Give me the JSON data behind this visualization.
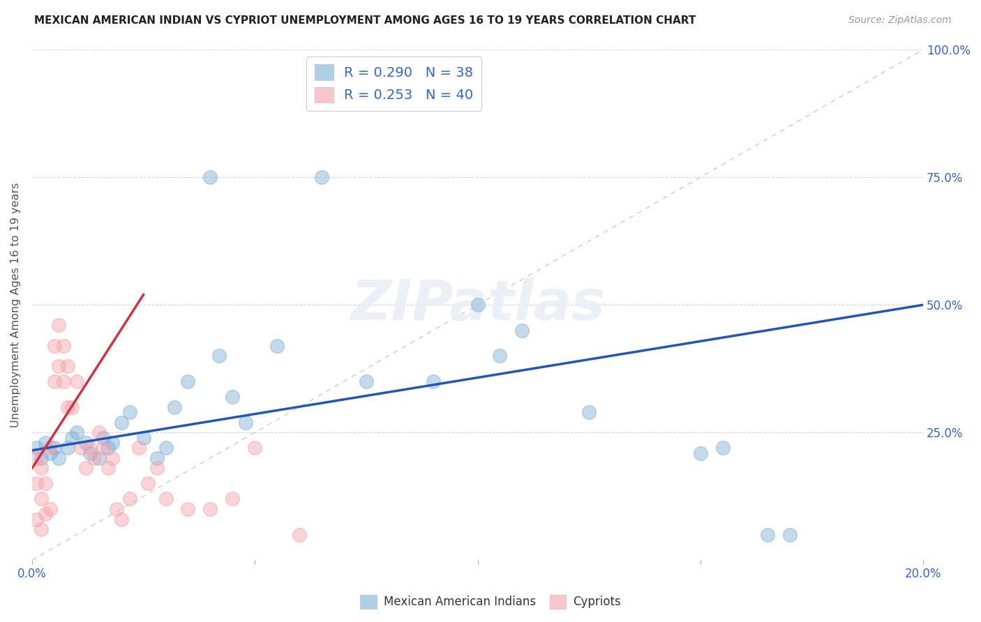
{
  "title": "MEXICAN AMERICAN INDIAN VS CYPRIOT UNEMPLOYMENT AMONG AGES 16 TO 19 YEARS CORRELATION CHART",
  "source": "Source: ZipAtlas.com",
  "ylabel": "Unemployment Among Ages 16 to 19 years",
  "xlim": [
    0.0,
    0.2
  ],
  "ylim": [
    0.0,
    1.0
  ],
  "blue_color": "#7BAFD4",
  "pink_color": "#F4A0A8",
  "blue_line_color": "#2255BB",
  "pink_line_color": "#CC3344",
  "diagonal_color": "#CCCCCC",
  "watermark": "ZIPatlas",
  "legend_R_blue": "R = 0.290",
  "legend_N_blue": "N = 38",
  "legend_R_pink": "R = 0.253",
  "legend_N_pink": "N = 40",
  "blue_scatter_x": [
    0.001,
    0.002,
    0.003,
    0.004,
    0.005,
    0.006,
    0.008,
    0.009,
    0.01,
    0.012,
    0.013,
    0.015,
    0.016,
    0.017,
    0.018,
    0.02,
    0.022,
    0.025,
    0.028,
    0.03,
    0.032,
    0.035,
    0.04,
    0.042,
    0.045,
    0.048,
    0.055,
    0.065,
    0.075,
    0.09,
    0.1,
    0.105,
    0.11,
    0.125,
    0.15,
    0.155,
    0.165,
    0.17
  ],
  "blue_scatter_y": [
    0.22,
    0.2,
    0.23,
    0.21,
    0.22,
    0.2,
    0.22,
    0.24,
    0.25,
    0.23,
    0.21,
    0.2,
    0.24,
    0.22,
    0.23,
    0.27,
    0.29,
    0.24,
    0.2,
    0.22,
    0.3,
    0.35,
    0.75,
    0.4,
    0.32,
    0.27,
    0.42,
    0.75,
    0.35,
    0.35,
    0.5,
    0.4,
    0.45,
    0.29,
    0.21,
    0.22,
    0.05,
    0.05
  ],
  "pink_scatter_x": [
    0.001,
    0.001,
    0.001,
    0.002,
    0.002,
    0.002,
    0.003,
    0.003,
    0.004,
    0.004,
    0.005,
    0.005,
    0.006,
    0.006,
    0.007,
    0.007,
    0.008,
    0.008,
    0.009,
    0.01,
    0.011,
    0.012,
    0.013,
    0.014,
    0.015,
    0.016,
    0.017,
    0.018,
    0.019,
    0.02,
    0.022,
    0.024,
    0.026,
    0.028,
    0.03,
    0.035,
    0.04,
    0.045,
    0.05,
    0.06
  ],
  "pink_scatter_y": [
    0.2,
    0.15,
    0.08,
    0.18,
    0.12,
    0.06,
    0.15,
    0.09,
    0.22,
    0.1,
    0.42,
    0.35,
    0.46,
    0.38,
    0.42,
    0.35,
    0.38,
    0.3,
    0.3,
    0.35,
    0.22,
    0.18,
    0.22,
    0.2,
    0.25,
    0.22,
    0.18,
    0.2,
    0.1,
    0.08,
    0.12,
    0.22,
    0.15,
    0.18,
    0.12,
    0.1,
    0.1,
    0.12,
    0.22,
    0.05
  ],
  "blue_trend_x": [
    0.0,
    0.2
  ],
  "blue_trend_y": [
    0.215,
    0.5
  ],
  "pink_trend_x": [
    0.0,
    0.025
  ],
  "pink_trend_y": [
    0.18,
    0.52
  ]
}
